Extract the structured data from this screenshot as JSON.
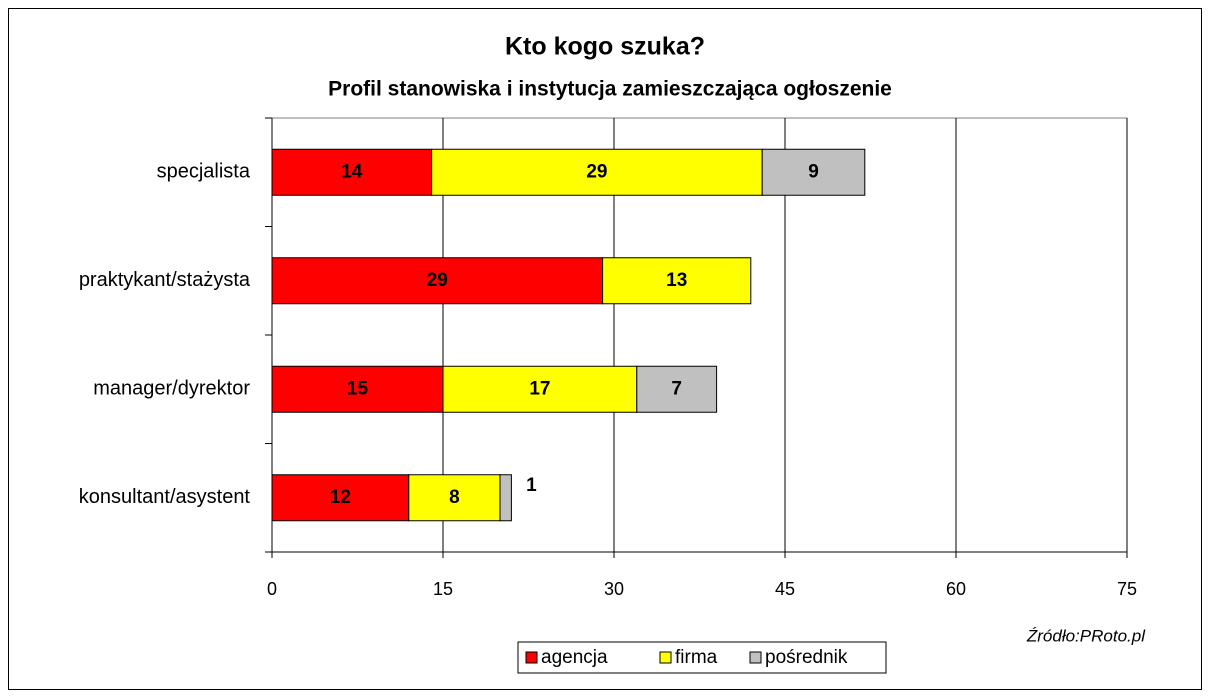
{
  "chart_data": {
    "type": "stacked-bar-horizontal",
    "title": "Kto kogo szuka?",
    "subtitle": "Profil stanowiska i instytucja zamieszczająca ogłoszenie",
    "annotation": "Źródło:PRoto.pl",
    "categories": [
      "specjalista",
      "praktykant/stażysta",
      "manager/dyrektor",
      "konsultant/asystent"
    ],
    "series": [
      {
        "name": "agencja",
        "color": "#ff0000",
        "values": [
          14,
          29,
          15,
          12
        ]
      },
      {
        "name": "firma",
        "color": "#ffff00",
        "values": [
          29,
          13,
          17,
          8
        ]
      },
      {
        "name": "pośrednik",
        "color": "#c0c0c0",
        "values": [
          9,
          null,
          7,
          1
        ]
      }
    ],
    "xlim": [
      0,
      75
    ],
    "xticks": [
      0,
      15,
      30,
      45,
      60,
      75
    ],
    "grid": true,
    "legend": "bottom"
  }
}
